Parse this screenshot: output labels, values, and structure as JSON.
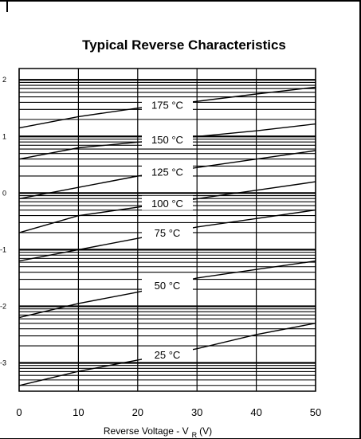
{
  "chart_data": {
    "type": "line",
    "title": "Typical Reverse Characteristics",
    "xlabel": "Reverse Voltage - V",
    "xlabel_subscript": "R",
    "xlabel_unit": "(V)",
    "ylabel": "",
    "xlim": [
      0,
      50
    ],
    "ylim": [
      -3.5,
      2.2
    ],
    "xscale": "linear",
    "yscale": "log",
    "x_ticks": [
      0,
      10,
      20,
      30,
      40,
      50
    ],
    "x_tick_labels": [
      "0",
      "10",
      "20",
      "30",
      "40",
      "50"
    ],
    "y_tick_values": [
      2,
      1,
      0,
      -1,
      -2,
      -3
    ],
    "y_tick_labels": [
      "2",
      "1",
      "0",
      "-1",
      "-2",
      "-3"
    ],
    "grid": true,
    "series": [
      {
        "name": "175 °C",
        "x": [
          0,
          10,
          20,
          30,
          40,
          50
        ],
        "y": [
          1.15,
          1.35,
          1.5,
          1.62,
          1.75,
          1.87
        ]
      },
      {
        "name": "150 °C",
        "x": [
          0,
          10,
          20,
          30,
          40,
          50
        ],
        "y": [
          0.6,
          0.8,
          0.9,
          1.0,
          1.1,
          1.22
        ]
      },
      {
        "name": "125 °C",
        "x": [
          0,
          10,
          20,
          30,
          40,
          50
        ],
        "y": [
          -0.1,
          0.1,
          0.3,
          0.45,
          0.6,
          0.75
        ]
      },
      {
        "name": "100 °C",
        "x": [
          0,
          10,
          20,
          30,
          40,
          50
        ],
        "y": [
          -0.7,
          -0.4,
          -0.25,
          -0.1,
          0.05,
          0.2
        ]
      },
      {
        "name": "75 °C",
        "x": [
          0,
          10,
          20,
          30,
          40,
          50
        ],
        "y": [
          -1.2,
          -1.0,
          -0.8,
          -0.6,
          -0.45,
          -0.3
        ]
      },
      {
        "name": "50 °C",
        "x": [
          0,
          10,
          20,
          30,
          40,
          50
        ],
        "y": [
          -2.2,
          -1.95,
          -1.75,
          -1.5,
          -1.35,
          -1.2
        ]
      },
      {
        "name": "25 °C",
        "x": [
          0,
          10,
          20,
          30,
          40,
          50
        ],
        "y": [
          -3.4,
          -3.15,
          -2.95,
          -2.75,
          -2.5,
          -2.3
        ]
      }
    ]
  }
}
